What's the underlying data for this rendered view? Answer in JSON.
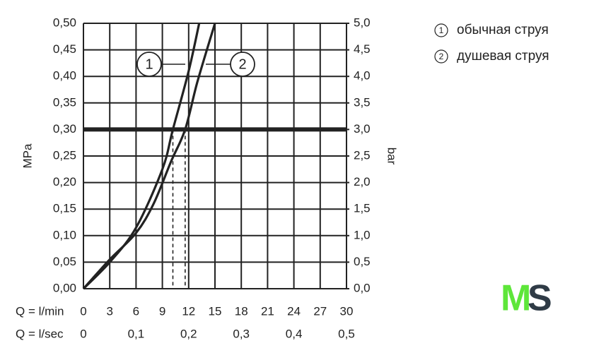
{
  "chart_data": {
    "type": "line",
    "y_axis_label": "MPa",
    "y2_axis_label": "bar",
    "x_axis_label": "Q = l/min",
    "x2_axis_label": "Q = l/sec",
    "xlim": [
      0,
      30
    ],
    "xticks": [
      0,
      3,
      6,
      9,
      12,
      15,
      18,
      21,
      24,
      27,
      30
    ],
    "x2lim": [
      0,
      0.5
    ],
    "x2ticks": [
      0,
      {
        "value": 0.1,
        "label": "0,1"
      },
      {
        "value": 0.2,
        "label": "0,2"
      },
      {
        "value": 0.3,
        "label": "0,3"
      },
      {
        "value": 0.4,
        "label": "0,4"
      },
      {
        "value": 0.5,
        "label": "0,5"
      }
    ],
    "ylim": [
      0,
      0.5
    ],
    "yticks": [
      {
        "value": 0,
        "label": "0,00"
      },
      {
        "value": 0.05,
        "label": "0,05"
      },
      {
        "value": 0.1,
        "label": "0,10"
      },
      {
        "value": 0.15,
        "label": "0,15"
      },
      {
        "value": 0.2,
        "label": "0,20"
      },
      {
        "value": 0.25,
        "label": "0,25"
      },
      {
        "value": 0.3,
        "label": "0,30"
      },
      {
        "value": 0.35,
        "label": "0,35"
      },
      {
        "value": 0.4,
        "label": "0,40"
      },
      {
        "value": 0.45,
        "label": "0,45"
      },
      {
        "value": 0.5,
        "label": "0,50"
      }
    ],
    "y2lim": [
      0,
      5
    ],
    "y2ticks": [
      {
        "value": 0,
        "label": "0,0"
      },
      {
        "value": 0.5,
        "label": "0,5"
      },
      {
        "value": 1,
        "label": "1,0"
      },
      {
        "value": 1.5,
        "label": "1,5"
      },
      {
        "value": 2,
        "label": "2,0"
      },
      {
        "value": 2.5,
        "label": "2,5"
      },
      {
        "value": 3,
        "label": "3,0"
      },
      {
        "value": 3.5,
        "label": "3,5"
      },
      {
        "value": 4,
        "label": "4,0"
      },
      {
        "value": 4.5,
        "label": "4,5"
      },
      {
        "value": 5,
        "label": "5,0"
      }
    ],
    "grid": true,
    "reference_y": 0.3,
    "markers_x": [
      10.2,
      11.6
    ],
    "series": [
      {
        "name": "обычная струя",
        "label": "1",
        "color": "#222222",
        "x": [
          0,
          3,
          6,
          9,
          10.2,
          12,
          13.2
        ],
        "values": [
          0,
          0.05,
          0.115,
          0.225,
          0.3,
          0.41,
          0.5
        ]
      },
      {
        "name": "душевая струя",
        "label": "2",
        "color": "#222222",
        "x": [
          0,
          3,
          6,
          8,
          10,
          11.6,
          13,
          15
        ],
        "values": [
          0,
          0.055,
          0.105,
          0.16,
          0.24,
          0.3,
          0.39,
          0.5
        ]
      }
    ],
    "logo": {
      "first": "M",
      "second": "S"
    }
  }
}
